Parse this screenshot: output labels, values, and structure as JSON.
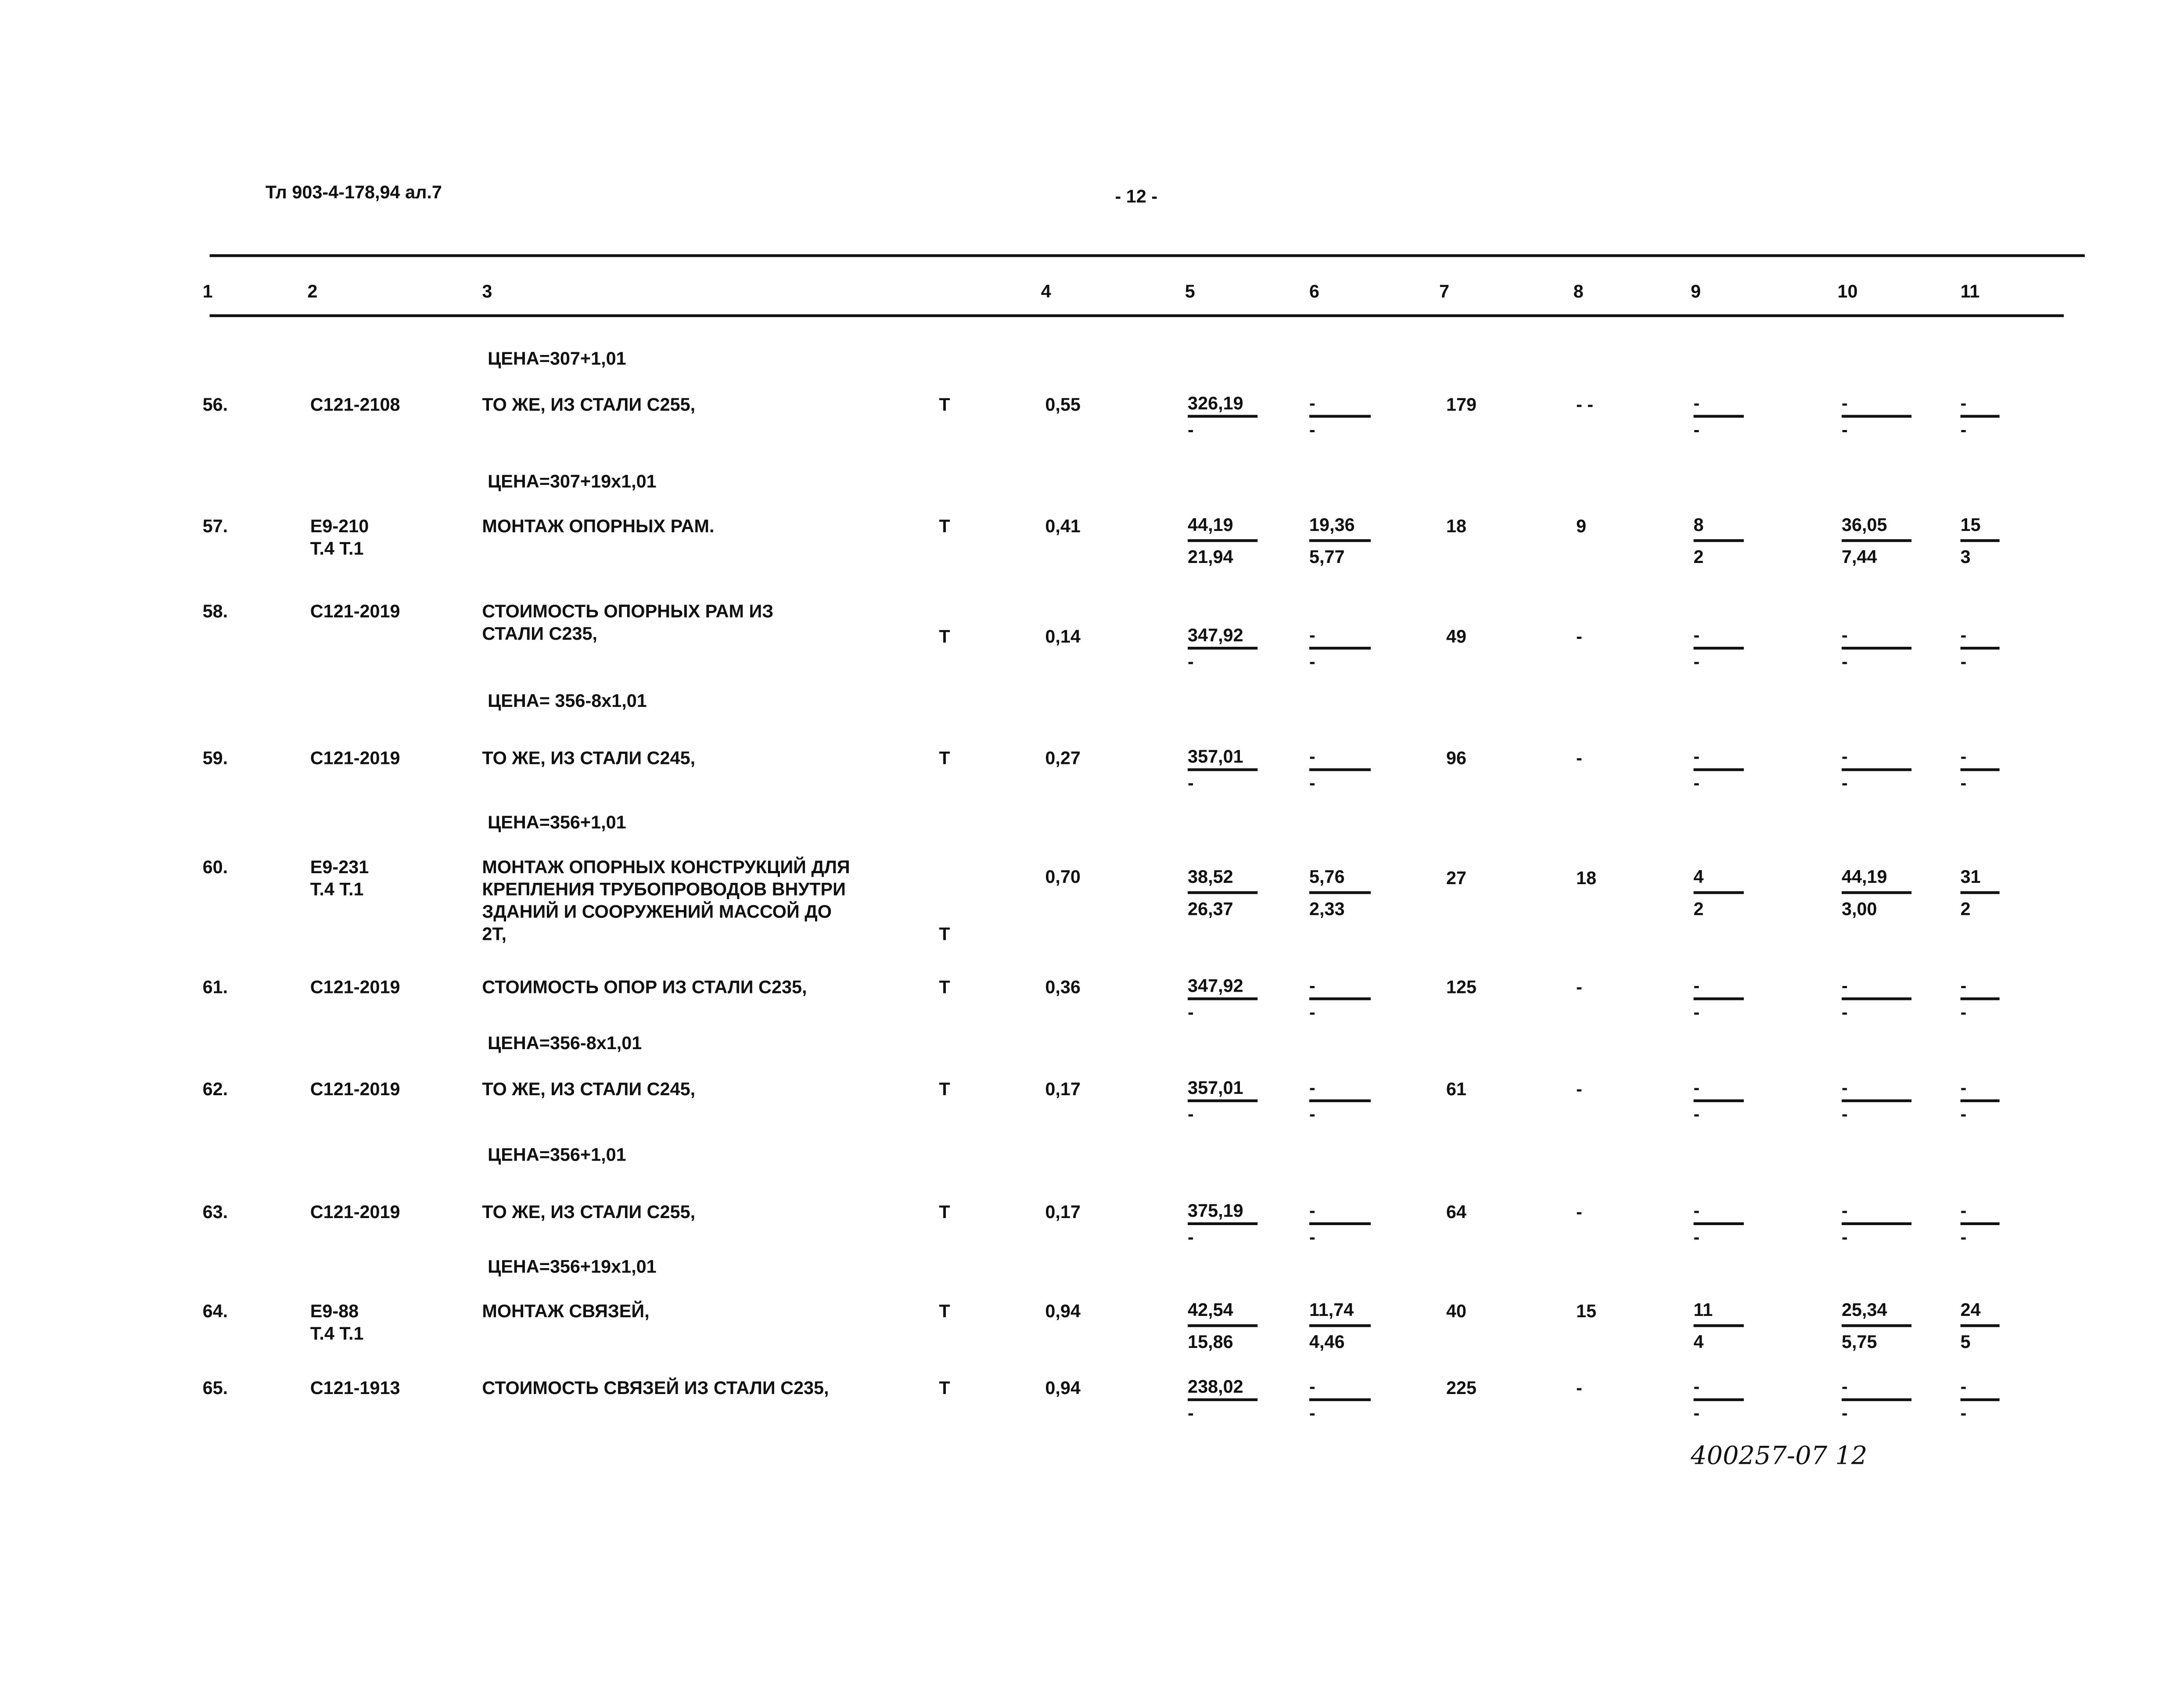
{
  "header": {
    "doc_code": "Тл 903-4-178,94 ал.7",
    "page_number": "- 12 -"
  },
  "columns": [
    "1",
    "2",
    "3",
    "4",
    "5",
    "6",
    "7",
    "8",
    "9",
    "10",
    "11"
  ],
  "items": [
    {
      "type": "price",
      "text": "ЦЕНА=307+1,01"
    },
    {
      "type": "row",
      "num": "56.",
      "code": [
        "С121-2108"
      ],
      "desc": [
        "ТО ЖЕ, ИЗ СТАЛИ С255,"
      ],
      "unit": "Т",
      "qty": "0,55",
      "c5": {
        "top": "326,19",
        "bottom": "-"
      },
      "c6": {
        "top": "-",
        "bottom": "-"
      },
      "c7": "179",
      "c8": "- -",
      "c9": {
        "top": "-",
        "bottom": "-"
      },
      "c10": {
        "top": "-",
        "bottom": "-"
      },
      "c11": {
        "top": "-",
        "bottom": "-"
      }
    },
    {
      "type": "price",
      "text": "ЦЕНА=307+19х1,01"
    },
    {
      "type": "row",
      "num": "57.",
      "code": [
        "Е9-210",
        "Т.4 Т.1"
      ],
      "desc": [
        "МОНТАЖ ОПОРНЫХ РАМ."
      ],
      "unit": "Т",
      "qty": "0,41",
      "c5": {
        "top": "44,19",
        "bottom": "21,94"
      },
      "c6": {
        "top": "19,36",
        "bottom": "5,77"
      },
      "c7": "18",
      "c8": "9",
      "c9": {
        "top": "8",
        "bottom": "2"
      },
      "c10": {
        "top": "36,05",
        "bottom": "7,44"
      },
      "c11": {
        "top": "15",
        "bottom": "3"
      }
    },
    {
      "type": "row",
      "num": "58.",
      "code": [
        "С121-2019"
      ],
      "desc": [
        "СТОИМОСТЬ ОПОРНЫХ РАМ ИЗ",
        "СТАЛИ С235,"
      ],
      "unit": "Т",
      "qty": "0,14",
      "c5": {
        "top": "347,92",
        "bottom": "-"
      },
      "c6": {
        "top": "-",
        "bottom": "-"
      },
      "c7": "49",
      "c8": "-",
      "c9": {
        "top": "-",
        "bottom": "-"
      },
      "c10": {
        "top": "-",
        "bottom": "-"
      },
      "c11": {
        "top": "-",
        "bottom": "-"
      }
    },
    {
      "type": "price",
      "text": "ЦЕНА= 356-8х1,01"
    },
    {
      "type": "row",
      "num": "59.",
      "code": [
        "С121-2019"
      ],
      "desc": [
        "ТО ЖЕ, ИЗ СТАЛИ С245,"
      ],
      "unit": "Т",
      "qty": "0,27",
      "c5": {
        "top": "357,01",
        "bottom": "-"
      },
      "c6": {
        "top": "-",
        "bottom": "-"
      },
      "c7": "96",
      "c8": "-",
      "c9": {
        "top": "-",
        "bottom": "-"
      },
      "c10": {
        "top": "-",
        "bottom": "-"
      },
      "c11": {
        "top": "-",
        "bottom": "-"
      }
    },
    {
      "type": "price",
      "text": "ЦЕНА=356+1,01"
    },
    {
      "type": "row",
      "num": "60.",
      "code": [
        "Е9-231",
        "Т.4 Т.1"
      ],
      "desc": [
        "МОНТАЖ ОПОРНЫХ КОНСТРУКЦИЙ ДЛЯ",
        "КРЕПЛЕНИЯ ТРУБОПРОВОДОВ ВНУТРИ",
        "ЗДАНИЙ И СООРУЖЕНИЙ МАССОЙ ДО",
        "2Т,"
      ],
      "unit": "Т",
      "qty": "0,70",
      "c5": {
        "top": "38,52",
        "bottom": "26,37"
      },
      "c6": {
        "top": "5,76",
        "bottom": "2,33"
      },
      "c7": "27",
      "c8": "18",
      "c9": {
        "top": "4",
        "bottom": "2"
      },
      "c10": {
        "top": "44,19",
        "bottom": "3,00"
      },
      "c11": {
        "top": "31",
        "bottom": "2"
      }
    },
    {
      "type": "row",
      "num": "61.",
      "code": [
        "С121-2019"
      ],
      "desc": [
        "СТОИМОСТЬ ОПОР ИЗ СТАЛИ С235,"
      ],
      "unit": "Т",
      "qty": "0,36",
      "c5": {
        "top": "347,92",
        "bottom": "-"
      },
      "c6": {
        "top": "-",
        "bottom": "-"
      },
      "c7": "125",
      "c8": "-",
      "c9": {
        "top": "-",
        "bottom": "-"
      },
      "c10": {
        "top": "-",
        "bottom": "-"
      },
      "c11": {
        "top": "-",
        "bottom": "-"
      }
    },
    {
      "type": "price",
      "text": "ЦЕНА=356-8х1,01"
    },
    {
      "type": "row",
      "num": "62.",
      "code": [
        "С121-2019"
      ],
      "desc": [
        "ТО ЖЕ, ИЗ СТАЛИ С245,"
      ],
      "unit": "Т",
      "qty": "0,17",
      "c5": {
        "top": "357,01",
        "bottom": "-"
      },
      "c6": {
        "top": "-",
        "bottom": "-"
      },
      "c7": "61",
      "c8": "-",
      "c9": {
        "top": "-",
        "bottom": "-"
      },
      "c10": {
        "top": "-",
        "bottom": "-"
      },
      "c11": {
        "top": "-",
        "bottom": "-"
      }
    },
    {
      "type": "price",
      "text": "ЦЕНА=356+1,01"
    },
    {
      "type": "row",
      "num": "63.",
      "code": [
        "С121-2019"
      ],
      "desc": [
        "ТО ЖЕ, ИЗ СТАЛИ С255,"
      ],
      "unit": "Т",
      "qty": "0,17",
      "c5": {
        "top": "375,19",
        "bottom": "-"
      },
      "c6": {
        "top": "-",
        "bottom": "-"
      },
      "c7": "64",
      "c8": "-",
      "c9": {
        "top": "-",
        "bottom": "-"
      },
      "c10": {
        "top": "-",
        "bottom": "-"
      },
      "c11": {
        "top": "-",
        "bottom": "-"
      }
    },
    {
      "type": "price",
      "text": "ЦЕНА=356+19х1,01"
    },
    {
      "type": "row",
      "num": "64.",
      "code": [
        "Е9-88",
        "Т.4 Т.1"
      ],
      "desc": [
        "МОНТАЖ  СВЯЗЕЙ,"
      ],
      "unit": "Т",
      "qty": "0,94",
      "c5": {
        "top": "42,54",
        "bottom": "15,86"
      },
      "c6": {
        "top": "11,74",
        "bottom": "4,46"
      },
      "c7": "40",
      "c8": "15",
      "c9": {
        "top": "11",
        "bottom": "4"
      },
      "c10": {
        "top": "25,34",
        "bottom": "5,75"
      },
      "c11": {
        "top": "24",
        "bottom": "5"
      }
    },
    {
      "type": "row",
      "num": "65.",
      "code": [
        "С121-1913"
      ],
      "desc": [
        "СТОИМОСТЬ СВЯЗЕЙ ИЗ СТАЛИ С235,"
      ],
      "unit": "Т",
      "qty": "0,94",
      "c5": {
        "top": "238,02",
        "bottom": "-"
      },
      "c6": {
        "top": "-",
        "bottom": "-"
      },
      "c7": "225",
      "c8": "-",
      "c9": {
        "top": "-",
        "bottom": "-"
      },
      "c10": {
        "top": "-",
        "bottom": "-"
      },
      "c11": {
        "top": "-",
        "bottom": "-"
      }
    }
  ],
  "footer": {
    "handwritten_note": "400257-07   12"
  }
}
